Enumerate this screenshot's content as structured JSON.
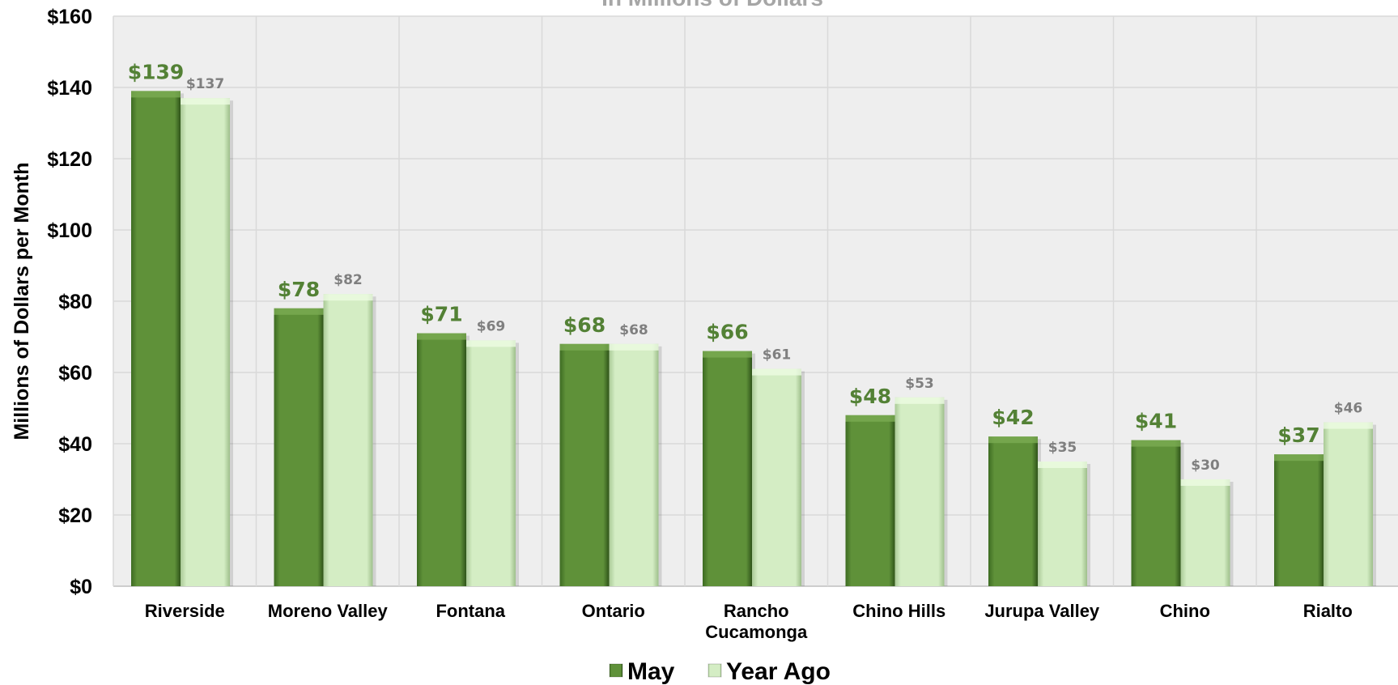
{
  "chart_data": {
    "type": "bar",
    "title": "In Millions of Dollars",
    "ylabel": "Millions of Dollars per Month",
    "xlabel": "",
    "ylim": [
      0,
      160
    ],
    "yticks": [
      0,
      20,
      40,
      60,
      80,
      100,
      120,
      140,
      160
    ],
    "ytick_labels": [
      "$0",
      "$20",
      "$40",
      "$60",
      "$80",
      "$100",
      "$120",
      "$140",
      "$160"
    ],
    "grid": true,
    "legend_position": "bottom",
    "categories": [
      [
        "Riverside"
      ],
      [
        "Moreno Valley"
      ],
      [
        "Fontana"
      ],
      [
        "Ontario"
      ],
      [
        "Rancho",
        "Cucamonga"
      ],
      [
        "Chino Hills"
      ],
      [
        "Jurupa Valley"
      ],
      [
        "Chino"
      ],
      [
        "Rialto"
      ]
    ],
    "series": [
      {
        "name": "May",
        "color": "#5b8c35",
        "label_color": "#538135",
        "values": [
          139,
          78,
          71,
          68,
          66,
          48,
          42,
          41,
          37
        ],
        "labels": [
          "$139",
          "$78",
          "$71",
          "$68",
          "$66",
          "$48",
          "$42",
          "$41",
          "$37"
        ]
      },
      {
        "name": "Year Ago",
        "color": "#d3edc2",
        "label_color": "#7f7f7f",
        "values": [
          137,
          82,
          69,
          68,
          61,
          53,
          35,
          30,
          46
        ],
        "labels": [
          "$137",
          "$82",
          "$69",
          "$68",
          "$61",
          "$53",
          "$35",
          "$30",
          "$46"
        ]
      }
    ],
    "colors": {
      "plot_background": "#eeeeee",
      "gridline": "#d9d9d9",
      "title": "#a6a6a6"
    }
  }
}
